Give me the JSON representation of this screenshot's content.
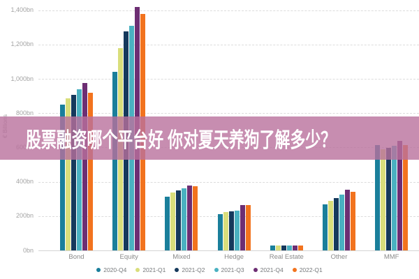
{
  "overlay": {
    "text": "股票融资哪个平台好 你对夏天养狗了解多少？",
    "band_color": "rgba(185,112,156,0.8)",
    "text_color": "#ffffff"
  },
  "chart_data": {
    "type": "bar",
    "title": "",
    "ylabel": "€ Billions",
    "unit": "bn",
    "categories": [
      "Bond",
      "Equity",
      "Mixed",
      "Hedge",
      "Real Estate",
      "Other",
      "MMF"
    ],
    "series": [
      {
        "name": "2020-Q4",
        "color": "#1a7f9b",
        "values": [
          850,
          1040,
          315,
          210,
          28,
          270,
          615
        ]
      },
      {
        "name": "2021-Q1",
        "color": "#d9de7b",
        "values": [
          885,
          1180,
          338,
          222,
          27,
          290,
          590
        ]
      },
      {
        "name": "2021-Q2",
        "color": "#15395c",
        "values": [
          905,
          1275,
          350,
          228,
          28,
          307,
          597
        ]
      },
      {
        "name": "2021-Q3",
        "color": "#4ab1c1",
        "values": [
          938,
          1310,
          362,
          232,
          28,
          325,
          610
        ]
      },
      {
        "name": "2021-Q4",
        "color": "#6d2e73",
        "values": [
          975,
          1420,
          380,
          266,
          29,
          355,
          640
        ]
      },
      {
        "name": "2022-Q1",
        "color": "#f2731e",
        "values": [
          920,
          1380,
          373,
          265,
          29,
          340,
          615
        ]
      }
    ],
    "ylim": [
      0,
      1450
    ],
    "yticks": [
      0,
      200,
      400,
      600,
      800,
      1000,
      1200,
      1400
    ],
    "ytick_labels": [
      "0bn",
      "200bn",
      "400bn",
      "600bn",
      "800bn",
      "1,000bn",
      "1,200bn",
      "1,400bn"
    ],
    "grid": "horizontal-dashed",
    "legend_position": "bottom-center"
  }
}
